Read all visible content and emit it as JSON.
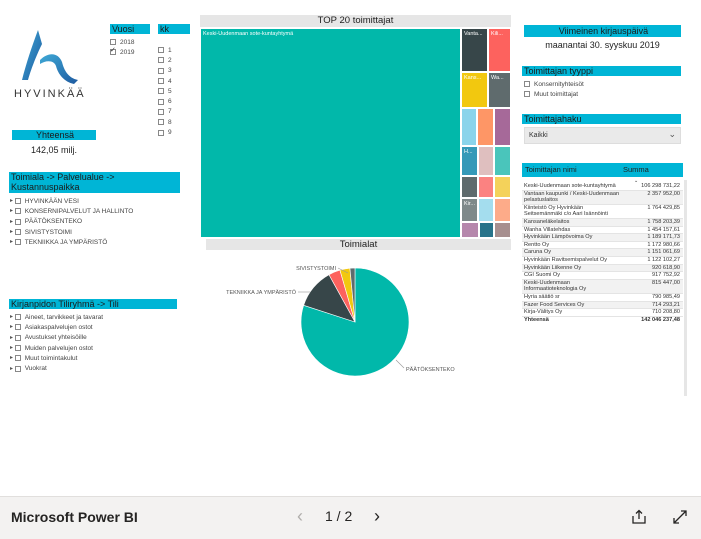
{
  "app": {
    "name": "Microsoft Power BI"
  },
  "logo": {
    "text": "HYVINKÄÄ"
  },
  "year_filter": {
    "title": "Vuosi",
    "options": [
      {
        "label": "2018",
        "checked": false
      },
      {
        "label": "2019",
        "checked": true
      }
    ]
  },
  "month_filter": {
    "title": "kk",
    "options": [
      "1",
      "2",
      "3",
      "4",
      "5",
      "6",
      "7",
      "8",
      "9"
    ]
  },
  "total_card": {
    "title": "Yhteensä",
    "value": "142,05 milj."
  },
  "hierarchy_filter": {
    "title_line1": "Toimiala -> Palvelualue ->",
    "title_line2": "Kustannuspaikka",
    "items": [
      "HYVINKÄÄN VESI",
      "KONSERNIPALVELUT JA HALLINTO",
      "PÄÄTÖKSENTEKO",
      "SIVISTYSTOIMI",
      "TEKNIIKKA JA YMPÄRISTÖ"
    ]
  },
  "account_filter": {
    "title": "Kirjanpidon Tiliryhmä -> Tili",
    "items": [
      "Aineet, tarvikkeet ja tavarat",
      "Asiakaspalvelujen ostot",
      "Avustukset yhteisöille",
      "Muiden palvelujen ostot",
      "Muut toimintakulut",
      "Vuokrat"
    ]
  },
  "treemap": {
    "title": "TOP 20 toimittajat",
    "main_label": "Keski-Uudenmaan sote-kuntayhtymä",
    "labels": [
      "Vanta...",
      "Kili...",
      "Kans...",
      "Wa...",
      "H...",
      "Kir..."
    ]
  },
  "pie": {
    "title": "Toimialat",
    "labels": [
      "SIVISTYSTOIMI",
      "TEKNIIKKA JA YMPÄRISTÖ",
      "PÄÄTÖKSENTEKO"
    ]
  },
  "chart_data": {
    "type": "pie",
    "title": "Toimialat",
    "slices": [
      {
        "label": "PÄÄTÖKSENTEKO",
        "value": 80.0,
        "color": "#01b8aa"
      },
      {
        "label": "TEKNIIKKA JA YMPÄRISTÖ",
        "value": 12.0,
        "color": "#374649"
      },
      {
        "label": "",
        "value": 3.5,
        "color": "#fd625e"
      },
      {
        "label": "SIVISTYSTOIMI",
        "value": 3.0,
        "color": "#f2c80f"
      },
      {
        "label": "",
        "value": 1.5,
        "color": "#5f6b6d"
      }
    ]
  },
  "last_date": {
    "title": "Viimeinen kirjauspäivä",
    "value": "maanantai 30. syyskuu 2019"
  },
  "supplier_type": {
    "title": "Toimittajan tyyppi",
    "options": [
      "Konsernityhteisöt",
      "Muut toimittajat"
    ]
  },
  "supplier_search": {
    "title": "Toimittajahaku",
    "value": "Kaikki"
  },
  "supplier_table": {
    "col_name": "Toimittajan nimi",
    "col_sum": "Summa",
    "rows": [
      {
        "name": "Keski-Uudenmaan sote-kuntayhtymä",
        "value": "106 298 731,22"
      },
      {
        "name": "Vantaan kaupunki / Keski-Uudenmaan pelastuslaitos",
        "value": "2 357 952,00"
      },
      {
        "name": "Kiinteistö Oy Hyvinkään Seitsemänmäki c/o Aari Isännöinti",
        "value": "1 764 429,85"
      },
      {
        "name": "Kansaneläkelaitos",
        "value": "1 758 203,39"
      },
      {
        "name": "Wanha Villatehdas",
        "value": "1 454 157,61"
      },
      {
        "name": "Hyvinkään Lämpövoima Oy",
        "value": "1 189 171,73"
      },
      {
        "name": "Rentto Oy",
        "value": "1 172 980,66"
      },
      {
        "name": "Caruna Oy",
        "value": "1 151 061,69"
      },
      {
        "name": "Hyvinkään Ravitsemispalvelut Oy",
        "value": "1 122 102,27"
      },
      {
        "name": "Hyvinkään Liikenne Oy",
        "value": "920 618,90"
      },
      {
        "name": "CGI Suomi Oy",
        "value": "917 752,92"
      },
      {
        "name": "Keski-Uudenmaan Informaatioteknologia Oy",
        "value": "815 447,00"
      },
      {
        "name": "Hyria säätiö sr",
        "value": "790 985,49"
      },
      {
        "name": "Fazer Food Services Oy",
        "value": "714 293,21"
      },
      {
        "name": "Kirja-Välitys Oy",
        "value": "710 208,80"
      }
    ],
    "total_label": "Yhteensä",
    "total_value": "142 046 237,48"
  },
  "pagination": {
    "label": "1 / 2"
  }
}
